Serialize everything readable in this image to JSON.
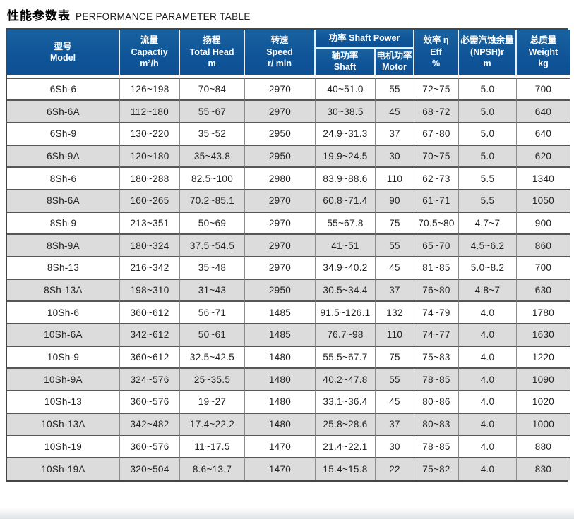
{
  "title": {
    "zh": "性能参数表",
    "en": "PERFORMANCE PARAMETER TABLE"
  },
  "table": {
    "header": {
      "model": {
        "lines": [
          "型号",
          "Model"
        ]
      },
      "capacity": {
        "lines": [
          "流量",
          "Capactiy",
          "m³/h"
        ]
      },
      "head": {
        "lines": [
          "扬程",
          "Total Head",
          "m"
        ]
      },
      "speed": {
        "lines": [
          "转速",
          "Speed",
          "r/ min"
        ]
      },
      "power_group": {
        "lines": [
          "功率 Shaft Power"
        ]
      },
      "shaft": {
        "lines": [
          "轴功率",
          "Shaft"
        ]
      },
      "motor": {
        "lines": [
          "电机功率",
          "Motor"
        ]
      },
      "eff": {
        "lines": [
          "效率 η",
          "Eff",
          "%"
        ]
      },
      "npsh": {
        "lines": [
          "必需汽蚀余量",
          "(NPSH)r",
          "m"
        ]
      },
      "weight": {
        "lines": [
          "总质量",
          "Weight",
          "kg"
        ]
      }
    },
    "column_keys": [
      "model",
      "capacity",
      "head",
      "speed",
      "shaft-power",
      "motor-power",
      "eff",
      "npsh",
      "weight"
    ],
    "rows": [
      [
        "6Sh-6",
        "126~198",
        "70~84",
        "2970",
        "40~51.0",
        "55",
        "72~75",
        "5.0",
        "700"
      ],
      [
        "6Sh-6A",
        "112~180",
        "55~67",
        "2970",
        "30~38.5",
        "45",
        "68~72",
        "5.0",
        "640"
      ],
      [
        "6Sh-9",
        "130~220",
        "35~52",
        "2950",
        "24.9~31.3",
        "37",
        "67~80",
        "5.0",
        "640"
      ],
      [
        "6Sh-9A",
        "120~180",
        "35~43.8",
        "2950",
        "19.9~24.5",
        "30",
        "70~75",
        "5.0",
        "620"
      ],
      [
        "8Sh-6",
        "180~288",
        "82.5~100",
        "2980",
        "83.9~88.6",
        "110",
        "62~73",
        "5.5",
        "1340"
      ],
      [
        "8Sh-6A",
        "160~265",
        "70.2~85.1",
        "2970",
        "60.8~71.4",
        "90",
        "61~71",
        "5.5",
        "1050"
      ],
      [
        "8Sh-9",
        "213~351",
        "50~69",
        "2970",
        "55~67.8",
        "75",
        "70.5~80",
        "4.7~7",
        "900"
      ],
      [
        "8Sh-9A",
        "180~324",
        "37.5~54.5",
        "2970",
        "41~51",
        "55",
        "65~70",
        "4.5~6.2",
        "860"
      ],
      [
        "8Sh-13",
        "216~342",
        "35~48",
        "2970",
        "34.9~40.2",
        "45",
        "81~85",
        "5.0~8.2",
        "700"
      ],
      [
        "8Sh-13A",
        "198~310",
        "31~43",
        "2950",
        "30.5~34.4",
        "37",
        "76~80",
        "4.8~7",
        "630"
      ],
      [
        "10Sh-6",
        "360~612",
        "56~71",
        "1485",
        "91.5~126.1",
        "132",
        "74~79",
        "4.0",
        "1780"
      ],
      [
        "10Sh-6A",
        "342~612",
        "50~61",
        "1485",
        "76.7~98",
        "110",
        "74~77",
        "4.0",
        "1630"
      ],
      [
        "10Sh-9",
        "360~612",
        "32.5~42.5",
        "1480",
        "55.5~67.7",
        "75",
        "75~83",
        "4.0",
        "1220"
      ],
      [
        "10Sh-9A",
        "324~576",
        "25~35.5",
        "1480",
        "40.2~47.8",
        "55",
        "78~85",
        "4.0",
        "1090"
      ],
      [
        "10Sh-13",
        "360~576",
        "19~27",
        "1480",
        "33.1~36.4",
        "45",
        "80~86",
        "4.0",
        "1020"
      ],
      [
        "10Sh-13A",
        "342~482",
        "17.4~22.2",
        "1480",
        "25.8~28.6",
        "37",
        "80~83",
        "4.0",
        "1000"
      ],
      [
        "10Sh-19",
        "360~576",
        "11~17.5",
        "1470",
        "21.4~22.1",
        "30",
        "78~85",
        "4.0",
        "880"
      ],
      [
        "10Sh-19A",
        "320~504",
        "8.6~13.7",
        "1470",
        "15.4~15.8",
        "22",
        "75~82",
        "4.0",
        "830"
      ]
    ]
  },
  "colors": {
    "header_blue": "#0f5598",
    "header_separator": "#e9eff6",
    "row_stripe_gray": "#dcdcdc",
    "grid_dark": "#565656",
    "grid_light": "#8c8c8c",
    "outer_border": "#454545"
  }
}
